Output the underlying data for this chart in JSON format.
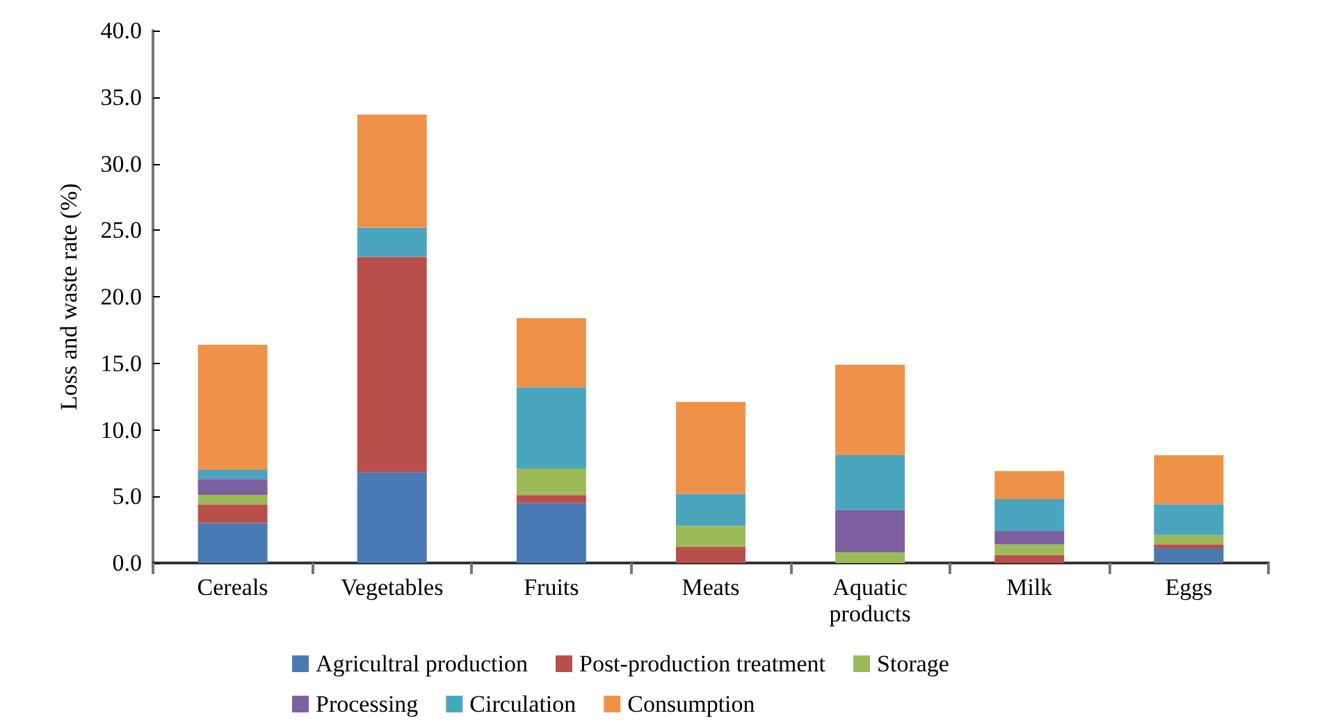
{
  "chart_data": {
    "type": "bar",
    "stacked": true,
    "ylabel": "Loss and waste rate (%)",
    "categories": [
      "Cereals",
      "Vegetables",
      "Fruits",
      "Meats",
      "Aquatic products",
      "Milk",
      "Eggs"
    ],
    "series": [
      {
        "name": "Agricultral production",
        "color": "#4a7ab4",
        "values": [
          3.0,
          6.8,
          4.5,
          0,
          0,
          0,
          1.1
        ]
      },
      {
        "name": "Post-production treatment",
        "color": "#b94f4b",
        "values": [
          1.4,
          16.2,
          0.6,
          1.2,
          0,
          0.6,
          0.3
        ]
      },
      {
        "name": "Storage",
        "color": "#9bbb59",
        "values": [
          0.7,
          0,
          2.0,
          1.6,
          0.8,
          0.8,
          0.7
        ]
      },
      {
        "name": "Processing",
        "color": "#7d60a0",
        "values": [
          1.2,
          0,
          0,
          0,
          3.2,
          1.0,
          0
        ]
      },
      {
        "name": "Circulation",
        "color": "#4aa5bf",
        "values": [
          0.7,
          2.2,
          6.1,
          2.4,
          4.1,
          2.4,
          2.3
        ]
      },
      {
        "name": "Consumption",
        "color": "#ee9249",
        "values": [
          9.4,
          8.5,
          5.2,
          6.9,
          6.8,
          2.1,
          3.7
        ]
      }
    ],
    "ylim": [
      0,
      40
    ],
    "yticks": [
      {
        "value": 0,
        "label": "0.0"
      },
      {
        "value": 5,
        "label": "5.0"
      },
      {
        "value": 10,
        "label": "10.0"
      },
      {
        "value": 15,
        "label": "15.0"
      },
      {
        "value": 20,
        "label": "20.0"
      },
      {
        "value": 25,
        "label": "25.0"
      },
      {
        "value": 30,
        "label": "30.0"
      },
      {
        "value": 35,
        "label": "35.0"
      },
      {
        "value": 40,
        "label": "40.0"
      }
    ],
    "grid": false,
    "legend": "bottom"
  }
}
